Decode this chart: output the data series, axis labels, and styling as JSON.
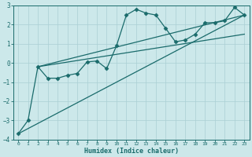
{
  "xlabel": "Humidex (Indice chaleur)",
  "xlim": [
    -0.5,
    23.5
  ],
  "ylim": [
    -4,
    3
  ],
  "xticks": [
    0,
    1,
    2,
    3,
    4,
    5,
    6,
    7,
    8,
    9,
    10,
    11,
    12,
    13,
    14,
    15,
    16,
    17,
    18,
    19,
    20,
    21,
    22,
    23
  ],
  "yticks": [
    -4,
    -3,
    -2,
    -1,
    0,
    1,
    2,
    3
  ],
  "bg_color": "#cce8ea",
  "grid_color": "#aacfd4",
  "line_color": "#1a6b6b",
  "series": [
    {
      "x": [
        0,
        1,
        2,
        3,
        4,
        5,
        6,
        7,
        8,
        9,
        10,
        11,
        12,
        13,
        14,
        15,
        16,
        17,
        18,
        19,
        20,
        21,
        22,
        23
      ],
      "y": [
        -3.7,
        -3.0,
        -0.2,
        -0.8,
        -0.8,
        -0.65,
        -0.55,
        0.05,
        0.1,
        -0.3,
        0.9,
        2.5,
        2.8,
        2.6,
        2.5,
        1.8,
        1.1,
        1.2,
        1.5,
        2.1,
        2.1,
        2.2,
        2.9,
        2.5
      ],
      "marker": "D",
      "markersize": 2.5,
      "lw": 0.9
    },
    {
      "x": [
        0,
        23
      ],
      "y": [
        -3.7,
        2.5
      ],
      "marker": null,
      "lw": 0.9
    },
    {
      "x": [
        2,
        23
      ],
      "y": [
        -0.2,
        2.5
      ],
      "marker": null,
      "lw": 0.9
    },
    {
      "x": [
        2,
        23
      ],
      "y": [
        -0.2,
        1.5
      ],
      "marker": null,
      "lw": 0.9
    }
  ]
}
